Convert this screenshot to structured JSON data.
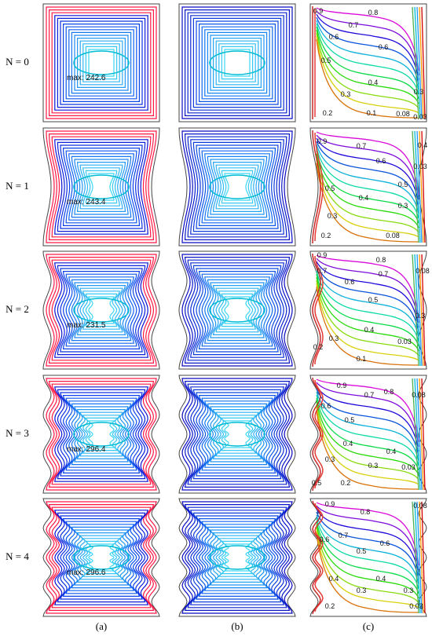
{
  "figure": {
    "columns": [
      "(a)",
      "(b)",
      "(c)"
    ],
    "rows": [
      {
        "label": "N = 0",
        "max": "max: 242.6",
        "contour_labels": [
          "0.9",
          "0.8",
          "0.7",
          "0.6",
          "0.6",
          "0.5",
          "0.4",
          "0.3",
          "0.3",
          "0.2",
          "0.1",
          "0.08",
          "0.03"
        ]
      },
      {
        "label": "N = 1",
        "max": "max: 243.4",
        "contour_labels": [
          "0.9",
          "0.7",
          "0.6",
          "0.5",
          "0.5",
          "0.4",
          "0.3",
          "0.3",
          "0.2",
          "0.08",
          "0.03",
          "0.4"
        ]
      },
      {
        "label": "N = 2",
        "max": "max: 231.5",
        "contour_labels": [
          "0.9",
          "0.8",
          "0.7",
          "0.7",
          "0.6",
          "0.5",
          "0.4",
          "0.3",
          "0.2",
          "0.1",
          "0.3",
          "0.03",
          "0.08"
        ]
      },
      {
        "label": "N = 3",
        "max": "max: 296.4",
        "contour_labels": [
          "0.9",
          "0.8",
          "0.7",
          "0.6",
          "0.5",
          "0.4",
          "0.4",
          "0.3",
          "0.3",
          "0.2",
          "0.03",
          "0.08",
          "0.5"
        ]
      },
      {
        "label": "N = 4",
        "max": "max: 296.6",
        "contour_labels": [
          "0.9",
          "0.8",
          "0.7",
          "0.6",
          "0.6",
          "0.5",
          "0.4",
          "0.4",
          "0.3",
          "0.3",
          "0.2",
          "0.03",
          "0.08"
        ]
      }
    ]
  }
}
